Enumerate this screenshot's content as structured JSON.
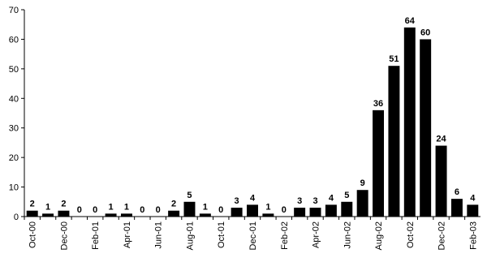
{
  "chart_data": {
    "type": "bar",
    "categories": [
      "Oct-00",
      null,
      "Dec-00",
      null,
      "Feb-01",
      null,
      "Apr-01",
      null,
      "Jun-01",
      null,
      "Aug-01",
      null,
      "Oct-01",
      null,
      "Dec-01",
      null,
      "Feb-02",
      null,
      "Apr-02",
      null,
      "Jun-02",
      null,
      "Aug-02",
      null,
      "Oct-02",
      null,
      "Dec-02",
      null,
      "Feb-03"
    ],
    "values": [
      2,
      1,
      2,
      0,
      0,
      1,
      1,
      0,
      0,
      2,
      5,
      1,
      0,
      3,
      4,
      1,
      0,
      3,
      3,
      4,
      5,
      9,
      36,
      51,
      64,
      60,
      24,
      6,
      4
    ],
    "color": "#000000",
    "ylim": [
      0,
      70
    ],
    "yticks": [
      0,
      10,
      20,
      30,
      40,
      50,
      60,
      70
    ],
    "grid": false
  }
}
